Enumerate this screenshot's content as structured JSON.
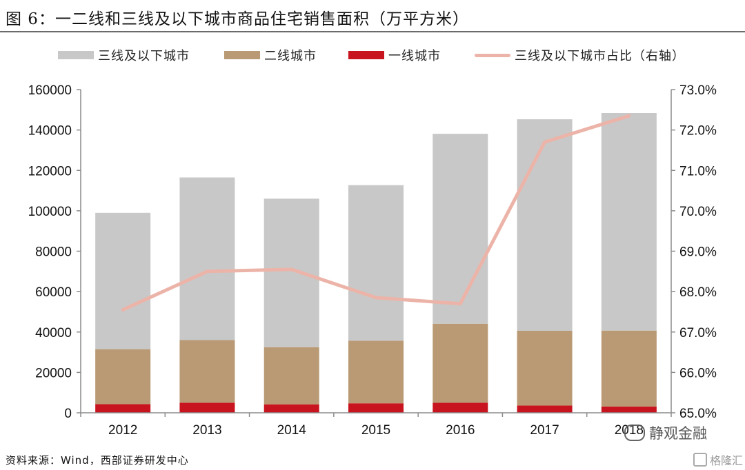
{
  "title": "图 6：一二线和三线及以下城市商品住宅销售面积（万平方米）",
  "source": "资料来源：Wind，西部证券研发中心",
  "watermark": "静观金融",
  "watermark2": "格隆汇",
  "colors": {
    "tier3": "#c8c8c8",
    "tier2": "#b99a74",
    "tier1": "#c8141e",
    "share": "#ecb4a8",
    "axis": "#8c8c8c"
  },
  "chart_data": {
    "type": "bar",
    "stacked": true,
    "categories": [
      "2012",
      "2013",
      "2014",
      "2015",
      "2016",
      "2017",
      "2018"
    ],
    "series": [
      {
        "name": "一线城市",
        "values": [
          4300,
          5000,
          4200,
          4700,
          5000,
          3600,
          3100
        ]
      },
      {
        "name": "二线城市",
        "values": [
          27200,
          31000,
          28300,
          31000,
          39100,
          37000,
          37600
        ]
      },
      {
        "name": "三线及以下城市",
        "values": [
          67500,
          80500,
          73500,
          77000,
          94000,
          104700,
          107700
        ]
      }
    ],
    "line_series": {
      "name": "三线及以下城市占比（右轴）",
      "values": [
        67.55,
        68.5,
        68.55,
        67.85,
        67.7,
        71.7,
        72.35
      ],
      "axis": "right"
    },
    "legend_order": [
      "三线及以下城市",
      "二线城市",
      "一线城市",
      "三线及以下城市占比（右轴）"
    ],
    "legend_position": "top",
    "ylim": [
      0,
      160000
    ],
    "y_ticks": [
      "0",
      "20000",
      "40000",
      "60000",
      "80000",
      "100000",
      "120000",
      "140000",
      "160000"
    ],
    "y2lim": [
      65.0,
      73.0
    ],
    "y2_ticks": [
      "65.0%",
      "66.0%",
      "67.0%",
      "68.0%",
      "69.0%",
      "70.0%",
      "71.0%",
      "72.0%",
      "73.0%"
    ],
    "grid": false
  }
}
